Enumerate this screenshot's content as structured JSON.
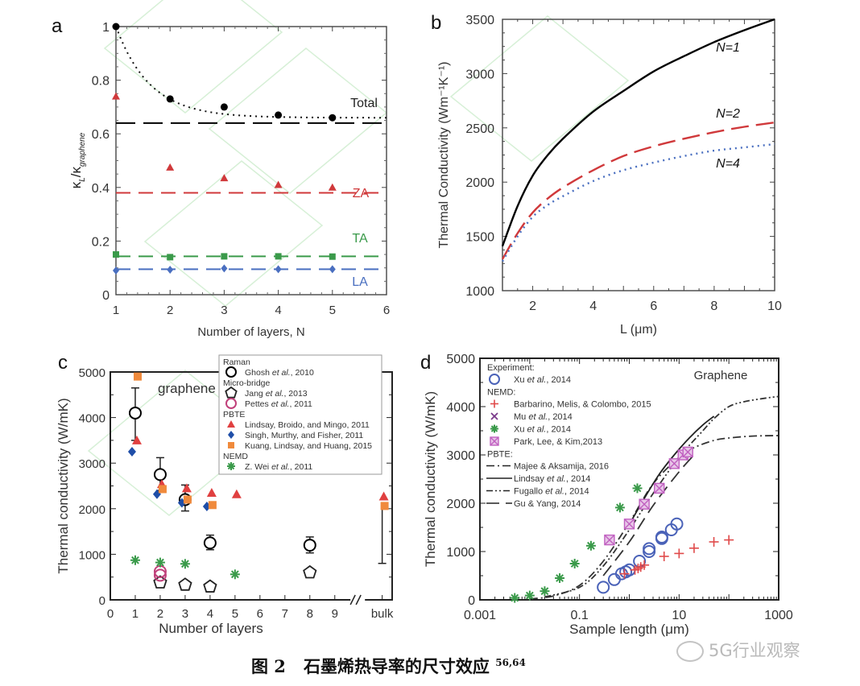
{
  "figure": {
    "caption_label": "图 2",
    "caption_text": "石墨烯热导率的尺寸效应",
    "caption_refs": "56,64",
    "watermark": "5G行业观察"
  },
  "chart_data": [
    {
      "panel": "a",
      "type": "scatter",
      "title": "",
      "xlabel": "Number of layers, N",
      "ylabel": "κL/κgraphene",
      "ylabel_main": "κ",
      "ylabel_sub1": "L",
      "ylabel_mid": "/κ",
      "ylabel_sub2": "graphene",
      "xlim": [
        1,
        6
      ],
      "ylim": [
        0,
        1
      ],
      "xticks": [
        "1",
        "2",
        "3",
        "4",
        "5",
        "6"
      ],
      "yticks": [
        "0",
        "0.2",
        "0.4",
        "0.6",
        "0.8",
        "1"
      ],
      "series": [
        {
          "name": "Total",
          "color": "#000000",
          "marker": "circle",
          "x": [
            1,
            2,
            3,
            4,
            5
          ],
          "y": [
            1.0,
            0.73,
            0.7,
            0.67,
            0.66
          ],
          "fit": "dotted",
          "asymptote": 0.64
        },
        {
          "name": "ZA",
          "color": "#d0393b",
          "marker": "triangle",
          "x": [
            1,
            2,
            3,
            4,
            5
          ],
          "y": [
            0.74,
            0.475,
            0.435,
            0.41,
            0.4
          ],
          "asymptote": 0.38
        },
        {
          "name": "TA",
          "color": "#3a9a4a",
          "marker": "square",
          "x": [
            1,
            2,
            3,
            4,
            5
          ],
          "y": [
            0.15,
            0.14,
            0.143,
            0.143,
            0.142
          ],
          "asymptote": 0.143
        },
        {
          "name": "LA",
          "color": "#4a6fc0",
          "marker": "diamond",
          "x": [
            1,
            2,
            3,
            4,
            5
          ],
          "y": [
            0.09,
            0.093,
            0.098,
            0.095,
            0.095
          ],
          "asymptote": 0.095
        }
      ]
    },
    {
      "panel": "b",
      "type": "line",
      "title": "",
      "xlabel": "L (μm)",
      "ylabel": "Thermal Conductivity (Wm⁻¹K⁻¹)",
      "xlim": [
        1,
        10
      ],
      "ylim": [
        1000,
        3500
      ],
      "xticks": [
        "2",
        "4",
        "6",
        "8",
        "10"
      ],
      "yticks": [
        "1000",
        "1500",
        "2000",
        "2500",
        "3000",
        "3500"
      ],
      "series": [
        {
          "name": "N=1",
          "color": "#000000",
          "style": "solid",
          "x": [
            1,
            1.5,
            2,
            2.5,
            3,
            4,
            5,
            6,
            7,
            8,
            9,
            10
          ],
          "y": [
            1410,
            1780,
            2060,
            2250,
            2400,
            2650,
            2840,
            3020,
            3160,
            3290,
            3400,
            3500
          ]
        },
        {
          "name": "N=2",
          "color": "#d0393b",
          "style": "dashed",
          "x": [
            1,
            1.5,
            2,
            2.5,
            3,
            4,
            5,
            6,
            7,
            8,
            9,
            10
          ],
          "y": [
            1290,
            1530,
            1720,
            1850,
            1950,
            2110,
            2240,
            2330,
            2400,
            2460,
            2510,
            2550
          ]
        },
        {
          "name": "N=4",
          "color": "#4a6fc0",
          "style": "dotted",
          "x": [
            1,
            1.5,
            2,
            2.5,
            3,
            4,
            5,
            6,
            7,
            8,
            9,
            10
          ],
          "y": [
            1270,
            1500,
            1680,
            1790,
            1870,
            2010,
            2110,
            2180,
            2240,
            2290,
            2320,
            2350
          ]
        }
      ]
    },
    {
      "panel": "c",
      "type": "scatter",
      "title": "",
      "annotation": "graphene",
      "xlabel": "Number of layers",
      "ylabel": "Thermal conductivity (W/mK)",
      "xlim": [
        0,
        10.5
      ],
      "ylim": [
        0,
        5000
      ],
      "xticks": [
        "0",
        "1",
        "2",
        "3",
        "4",
        "5",
        "6",
        "7",
        "8",
        "9",
        "bulk"
      ],
      "yticks": [
        "0",
        "1000",
        "2000",
        "3000",
        "4000",
        "5000"
      ],
      "legend_position": "top-right",
      "legend_groups": [
        "Raman",
        "Micro-bridge",
        "PBTE",
        "NEMD"
      ],
      "series": [
        {
          "name": "Ghosh et al., 2010",
          "group": "Raman",
          "color": "#000000",
          "marker": "open-circle",
          "x": [
            1,
            2,
            3,
            4,
            8
          ],
          "y": [
            4100,
            2750,
            2200,
            1250,
            1200
          ],
          "err_low": [
            3500,
            2400,
            1950,
            1100,
            1030
          ],
          "err_high": [
            4650,
            3120,
            2520,
            1420,
            1380
          ]
        },
        {
          "name": "Jang et al., 2013",
          "group": "Micro-bridge",
          "color": "#222222",
          "marker": "open-pentagon",
          "x": [
            2,
            3,
            4,
            8
          ],
          "y": [
            380,
            330,
            290,
            600
          ]
        },
        {
          "name": "Pettes et al., 2011",
          "group": "Micro-bridge",
          "color": "#c0407a",
          "marker": "open-circle",
          "x": [
            2,
            2
          ],
          "y": [
            620,
            540
          ]
        },
        {
          "name": "Lindsay, Broido, and Mingo, 2011",
          "group": "PBTE",
          "color": "#e04040",
          "marker": "triangle",
          "x": [
            1,
            2,
            3,
            4,
            5,
            "bulk"
          ],
          "y": [
            3500,
            2540,
            2450,
            2350,
            2320,
            2270
          ]
        },
        {
          "name": "Singh, Murthy, and Fisher, 2011",
          "group": "PBTE",
          "color": "#1f4ea8",
          "marker": "diamond",
          "x": [
            1,
            2,
            3,
            4
          ],
          "y": [
            3250,
            2320,
            2130,
            2050
          ]
        },
        {
          "name": "Kuang, Lindsay, and Huang, 2015",
          "group": "PBTE",
          "color": "#f08a3c",
          "marker": "square",
          "x": [
            1,
            2,
            3,
            4,
            "bulk"
          ],
          "y": [
            4900,
            2430,
            2200,
            2080,
            2060
          ]
        },
        {
          "name": "Z. Wei et al., 2011",
          "group": "NEMD",
          "color": "#3a9a4a",
          "marker": "asterisk",
          "x": [
            1,
            2,
            3,
            5
          ],
          "y": [
            870,
            820,
            790,
            560
          ]
        }
      ],
      "bulk_errorbar": {
        "low": 800,
        "high": 2060
      }
    },
    {
      "panel": "d",
      "type": "scatter",
      "title": "",
      "annotation": "Graphene",
      "xlabel": "Sample length (μm)",
      "ylabel": "Thermal conductivity (W/mK)",
      "xscale": "log",
      "xlim": [
        0.001,
        1000
      ],
      "ylim": [
        0,
        5000
      ],
      "xticks": [
        "0.001",
        "0.1",
        "10",
        "1000"
      ],
      "yticks": [
        "0",
        "1000",
        "2000",
        "3000",
        "4000",
        "5000"
      ],
      "legend_position": "top-left",
      "legend_groups": [
        "Experiment:",
        "NEMD:",
        "PBTE:"
      ],
      "series": [
        {
          "name": "Xu et al., 2014",
          "group": "Experiment:",
          "color": "#4a62b8",
          "marker": "open-circle",
          "x": [
            0.3,
            0.5,
            0.7,
            0.85,
            1.0,
            1.6,
            2.5,
            2.5,
            4.5,
            4.5,
            7,
            9
          ],
          "y": [
            260,
            420,
            540,
            580,
            620,
            800,
            1000,
            1060,
            1270,
            1300,
            1450,
            1570
          ]
        },
        {
          "name": "Barbarino, Melis, & Colombo, 2015",
          "group": "NEMD:",
          "color": "#e04a4a",
          "marker": "plus",
          "x": [
            0.8,
            1.3,
            1.5,
            1.7,
            2.0,
            5,
            10,
            20,
            50,
            100
          ],
          "y": [
            540,
            620,
            650,
            680,
            720,
            900,
            960,
            1070,
            1200,
            1240
          ]
        },
        {
          "name": "Mu et al., 2014",
          "group": "NEMD:",
          "color": "#7a3a8a",
          "marker": "x",
          "x": [
            1.0,
            2.0,
            4.0,
            8,
            12,
            15
          ],
          "y": [
            1560,
            1980,
            2310,
            2800,
            2980,
            3060
          ]
        },
        {
          "name": "Xu et al., 2014 (NEMD)",
          "group": "NEMD:",
          "color": "#3a9a4a",
          "marker": "asterisk",
          "x": [
            0.005,
            0.01,
            0.02,
            0.04,
            0.08,
            0.17,
            0.65,
            1.45
          ],
          "y": [
            40,
            90,
            180,
            450,
            750,
            1120,
            1910,
            2310
          ]
        },
        {
          "name": "Park, Lee, & Kim,2013",
          "group": "NEMD:",
          "color": "#c060c0",
          "marker": "boxed-x",
          "x": [
            0.4,
            1.0,
            2.0,
            4.0,
            8,
            12,
            15
          ],
          "y": [
            1240,
            1570,
            1980,
            2310,
            2820,
            3000,
            3060
          ]
        }
      ],
      "lines": [
        {
          "name": "Majee & Aksamija, 2016",
          "group": "PBTE:",
          "style": "dash-dot",
          "color": "#333333",
          "x": [
            0.01,
            0.03,
            0.1,
            0.3,
            1,
            3,
            10,
            20,
            50,
            100,
            300,
            1000
          ],
          "y": [
            20,
            80,
            300,
            800,
            1600,
            2400,
            2950,
            3150,
            3300,
            3350,
            3390,
            3400
          ]
        },
        {
          "name": "Lindsay et al., 2014",
          "group": "PBTE:",
          "style": "solid",
          "color": "#222222",
          "x": [
            1,
            2,
            4,
            8,
            16,
            30,
            50
          ],
          "y": [
            1560,
            2100,
            2600,
            3000,
            3350,
            3620,
            3800
          ]
        },
        {
          "name": "Fugallo et al., 2014",
          "group": "PBTE:",
          "style": "dash-dot-dot",
          "color": "#333333",
          "x": [
            0.02,
            0.1,
            0.3,
            1,
            3,
            10,
            30,
            50,
            100,
            200,
            500,
            1000
          ],
          "y": [
            60,
            260,
            700,
            1450,
            2200,
            2950,
            3500,
            3750,
            4000,
            4100,
            4170,
            4210
          ]
        },
        {
          "name": "Gu & Yang, 2014",
          "group": "PBTE:",
          "style": "dashed",
          "color": "#333333",
          "x": [
            0.3,
            1,
            3,
            10,
            20
          ],
          "y": [
            500,
            1200,
            1950,
            2650,
            3000
          ]
        }
      ]
    }
  ],
  "panels": {
    "a": {
      "label": "a",
      "series_labels": [
        "Total",
        "ZA",
        "TA",
        "LA"
      ]
    },
    "b": {
      "label": "b",
      "series_labels": [
        "N=1",
        "N=2",
        "N=4"
      ]
    },
    "c": {
      "label": "c"
    },
    "d": {
      "label": "d"
    }
  }
}
